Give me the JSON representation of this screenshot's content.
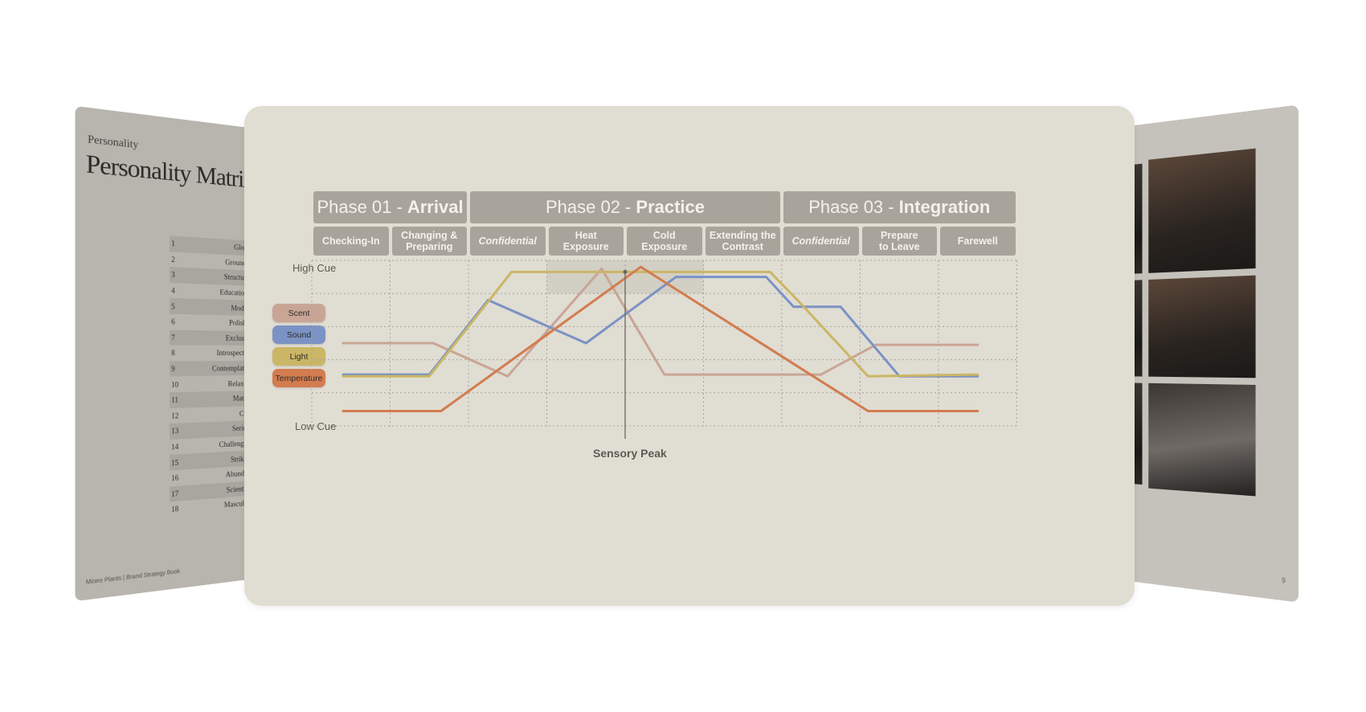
{
  "left_page": {
    "kicker": "Personality",
    "title": "Personality Matrix",
    "rows": [
      {
        "num": "1",
        "word": "Global"
      },
      {
        "num": "2",
        "word": "Grounded"
      },
      {
        "num": "3",
        "word": "Structured"
      },
      {
        "num": "4",
        "word": "Educational"
      },
      {
        "num": "5",
        "word": "Modern"
      },
      {
        "num": "6",
        "word": "Polished"
      },
      {
        "num": "7",
        "word": "Exclusive"
      },
      {
        "num": "8",
        "word": "Introspective"
      },
      {
        "num": "9",
        "word": "Contemplative"
      },
      {
        "num": "10",
        "word": "Relaxing"
      },
      {
        "num": "11",
        "word": "Mature"
      },
      {
        "num": "12",
        "word": "Cool"
      },
      {
        "num": "13",
        "word": "Serious"
      },
      {
        "num": "14",
        "word": "Challenging"
      },
      {
        "num": "15",
        "word": "Striking"
      },
      {
        "num": "16",
        "word": "Abundant"
      },
      {
        "num": "17",
        "word": "Scientific"
      },
      {
        "num": "18",
        "word": "Masculine"
      }
    ],
    "footer": "Mineo Plants | Brand Strategy Book"
  },
  "right_page": {
    "page_number": "9"
  },
  "chart_data": {
    "type": "line",
    "phases": [
      {
        "prefix": "Phase 01 -",
        "name": "Arrival"
      },
      {
        "prefix": "Phase 02 -",
        "name": "Practice"
      },
      {
        "prefix": "Phase 03 -",
        "name": "Integration"
      }
    ],
    "categories": [
      {
        "line1": "Checking-In",
        "line2": "",
        "italic": false
      },
      {
        "line1": "Changing &",
        "line2": "Preparing",
        "italic": false
      },
      {
        "line1": "Confidential",
        "line2": "",
        "italic": true
      },
      {
        "line1": "Heat",
        "line2": "Exposure",
        "italic": false
      },
      {
        "line1": "Cold",
        "line2": "Exposure",
        "italic": false
      },
      {
        "line1": "Extending the",
        "line2": "Contrast",
        "italic": false
      },
      {
        "line1": "Confidential",
        "line2": "",
        "italic": true
      },
      {
        "line1": "Prepare",
        "line2": "to Leave",
        "italic": false
      },
      {
        "line1": "Farewell",
        "line2": "",
        "italic": false
      }
    ],
    "y_axis": {
      "high_label": "High Cue",
      "low_label": "Low Cue",
      "ylim": [
        0,
        10
      ]
    },
    "grid": true,
    "legend_placement": "left",
    "series": [
      {
        "name": "Scent",
        "color": "#c9a596",
        "points": [
          [
            0.4,
            5
          ],
          [
            1.55,
            5
          ],
          [
            2.5,
            3
          ],
          [
            3.7,
            9.5
          ],
          [
            4.5,
            3.1
          ],
          [
            6.5,
            3.1
          ],
          [
            7.2,
            4.9
          ],
          [
            8.5,
            4.9
          ]
        ]
      },
      {
        "name": "Sound",
        "color": "#7b92c4",
        "points": [
          [
            0.4,
            3.1
          ],
          [
            1.5,
            3.1
          ],
          [
            2.25,
            7.6
          ],
          [
            3.5,
            5
          ],
          [
            4.65,
            9
          ],
          [
            5.8,
            9
          ],
          [
            6.15,
            7.2
          ],
          [
            6.75,
            7.2
          ],
          [
            7.5,
            3
          ],
          [
            8.5,
            3
          ]
        ]
      },
      {
        "name": "Light",
        "color": "#cbb665",
        "points": [
          [
            0.4,
            3
          ],
          [
            1.5,
            3
          ],
          [
            2.55,
            9.3
          ],
          [
            5.85,
            9.3
          ],
          [
            6.2,
            7.6
          ],
          [
            7.1,
            3
          ],
          [
            8.5,
            3.1
          ]
        ]
      },
      {
        "name": "Temperature",
        "color": "#d27c4f",
        "points": [
          [
            0.4,
            0.9
          ],
          [
            1.65,
            0.9
          ],
          [
            4.2,
            9.6
          ],
          [
            7.1,
            0.9
          ],
          [
            8.5,
            0.9
          ]
        ]
      }
    ],
    "annotation": {
      "label": "Sensory Peak",
      "x": 4.0,
      "y": 9.3
    },
    "highlight_range": {
      "x": [
        3.0,
        5.0
      ],
      "y": [
        8,
        10
      ]
    }
  }
}
